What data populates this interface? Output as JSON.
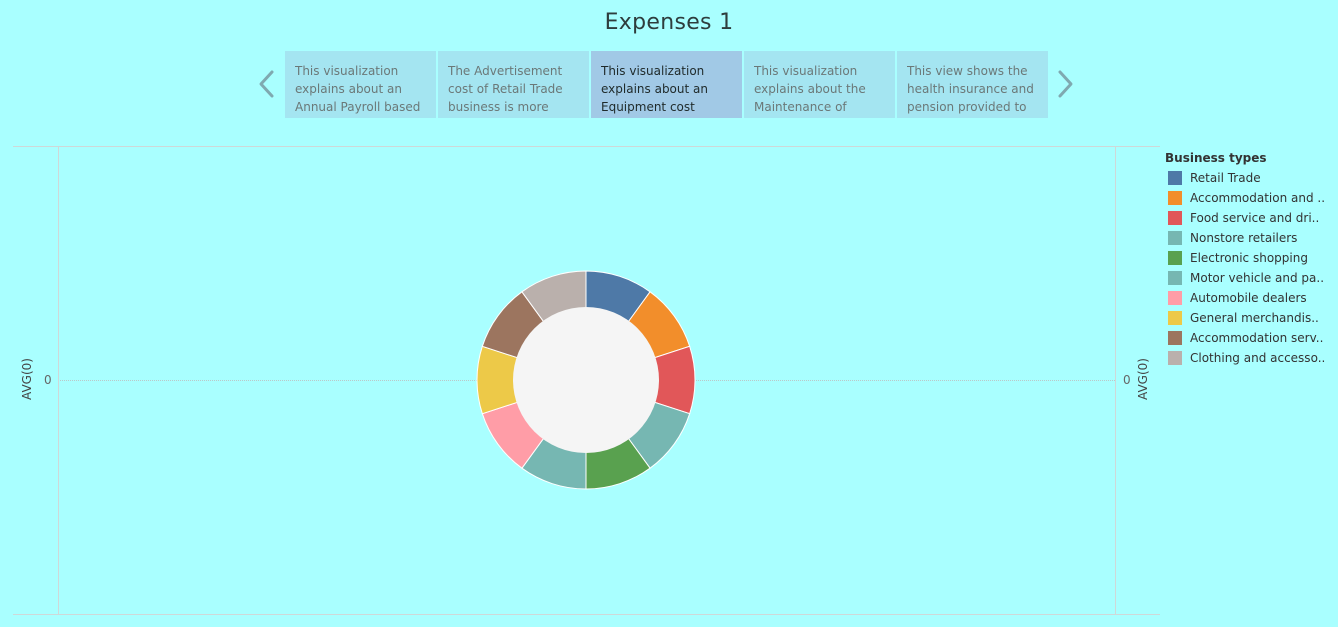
{
  "page": {
    "title": "Expenses 1"
  },
  "story_points": [
    {
      "text": "This visualization explains about an Annual Payroll based",
      "active": false
    },
    {
      "text": "The Advertisement cost of Retail Trade business is more than",
      "active": false
    },
    {
      "text": "This visualization explains about an Equipment cost based",
      "active": true
    },
    {
      "text": "This visualization explains about the Maintenance of",
      "active": false
    },
    {
      "text": "This view shows the health insurance and pension provided to",
      "active": false
    }
  ],
  "nav": {
    "prev_icon": "chevron-left-icon",
    "next_icon": "chevron-right-icon",
    "arrow_color": "#7fa9b0"
  },
  "axes": {
    "left_label": "AVG(0)",
    "right_label": "AVG(0)",
    "left_tick": "0",
    "right_tick": "0"
  },
  "legend": {
    "title": "Business types",
    "items": [
      {
        "label": "Retail Trade",
        "color": "#4e79a7"
      },
      {
        "label": "Accommodation and ..",
        "color": "#f28e2b"
      },
      {
        "label": "Food service and dri..",
        "color": "#e15759"
      },
      {
        "label": "Nonstore retailers",
        "color": "#76b7b2"
      },
      {
        "label": "Electronic shopping",
        "color": "#59a14f"
      },
      {
        "label": "Motor vehicle and pa..",
        "color": "#76b7b2"
      },
      {
        "label": "Automobile dealers",
        "color": "#ff9da7"
      },
      {
        "label": "General merchandis..",
        "color": "#edc948"
      },
      {
        "label": "Accommodation serv..",
        "color": "#9c755f"
      },
      {
        "label": "Clothing and accesso..",
        "color": "#bab0ac"
      }
    ]
  },
  "chart_data": {
    "type": "pie",
    "donut": true,
    "categories": [
      "Retail Trade",
      "Accommodation and ..",
      "Food service and dri..",
      "Nonstore retailers",
      "Electronic shopping",
      "Motor vehicle and pa..",
      "Automobile dealers",
      "General merchandis..",
      "Accommodation serv..",
      "Clothing and accesso.."
    ],
    "values": [
      1,
      1,
      1,
      1,
      1,
      1,
      1,
      1,
      1,
      1
    ],
    "colors": [
      "#4e79a7",
      "#f28e2b",
      "#e15759",
      "#76b7b2",
      "#59a14f",
      "#76b7b2",
      "#ff9da7",
      "#edc948",
      "#9c755f",
      "#bab0ac"
    ],
    "hole_color": "#f5f5f5",
    "ylabel": "AVG(0)",
    "grid": false
  }
}
